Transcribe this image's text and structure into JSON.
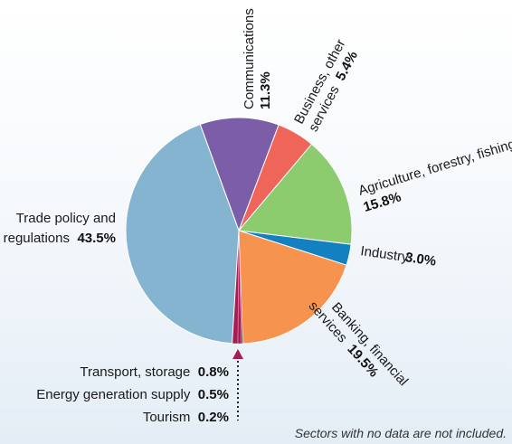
{
  "chart_data": {
    "type": "pie",
    "slices": [
      {
        "label": "Communications",
        "value": 11.3,
        "value_text": "11.3%",
        "color": "#7b5ea7"
      },
      {
        "label": "Business, other services",
        "value": 5.4,
        "value_text": "5.4%",
        "color": "#f0655a"
      },
      {
        "label": "Agriculture, forestry, fishing",
        "value": 15.8,
        "value_text": "15.8%",
        "color": "#8ccb6e"
      },
      {
        "label": "Industry",
        "value": 3.0,
        "value_text": "3.0%",
        "color": "#1380c2"
      },
      {
        "label": "Banking, financial services",
        "value": 19.5,
        "value_text": "19.5%",
        "color": "#f5934f"
      },
      {
        "label": "Tourism",
        "value": 0.2,
        "value_text": "0.2%",
        "color": "#a41d55"
      },
      {
        "label": "Energy generation supply",
        "value": 0.5,
        "value_text": "0.5%",
        "color": "#a41d55"
      },
      {
        "label": "Transport, storage",
        "value": 0.8,
        "value_text": "0.8%",
        "color": "#a41d55"
      },
      {
        "label": "Trade policy and regulations",
        "value": 43.5,
        "value_text": "43.5%",
        "color": "#84b4cf"
      }
    ],
    "labels": {
      "communications": "Communications",
      "business_1": "Business, other",
      "business_2": "services",
      "agriculture": "Agriculture, forestry, fishing",
      "industry": "Industry",
      "banking_1": "Banking, financial",
      "banking_2": "services",
      "trade_1": "Trade policy and",
      "trade_2": "regulations",
      "transport": "Transport, storage",
      "energy": "Energy generation supply",
      "tourism": "Tourism"
    },
    "footnote": "Sectors with no data are not included."
  }
}
